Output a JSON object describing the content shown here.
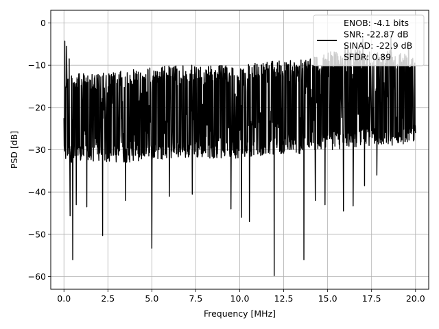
{
  "chart_data": {
    "type": "line",
    "title": "",
    "xlabel": "Frequency [MHz]",
    "ylabel": "PSD [dB]",
    "xlim": [
      -0.75,
      20.75
    ],
    "ylim": [
      -63,
      3
    ],
    "xticks": [
      0.0,
      2.5,
      5.0,
      7.5,
      10.0,
      12.5,
      15.0,
      17.5,
      20.0
    ],
    "xtick_labels": [
      "0.0",
      "2.5",
      "5.0",
      "7.5",
      "10.0",
      "12.5",
      "15.0",
      "17.5",
      "20.0"
    ],
    "yticks": [
      0,
      -10,
      -20,
      -30,
      -40,
      -50,
      -60
    ],
    "ytick_labels": [
      "0",
      "−10",
      "−20",
      "−30",
      "−40",
      "−50",
      "−60"
    ],
    "grid": true,
    "legend_position": "top-right",
    "series": [
      {
        "color": "#000000",
        "noisy_trace": true,
        "envelope": {
          "x": [
            0,
            2,
            4,
            6,
            8,
            10,
            12,
            14,
            15,
            16,
            17,
            18,
            19,
            20
          ],
          "upper": [
            -12,
            -12,
            -11,
            -10,
            -10,
            -10,
            -9,
            -8,
            -7,
            -6,
            -6,
            -6,
            -6,
            -7
          ],
          "lower": [
            -33,
            -33,
            -33,
            -32,
            -32,
            -32,
            -31,
            -31,
            -30,
            -30,
            -29,
            -29,
            -29,
            -28
          ]
        },
        "peaks": [
          {
            "x": 0.05,
            "y": -4.3
          },
          {
            "x": 0.15,
            "y": -5.5
          },
          {
            "x": 0.3,
            "y": -8.5
          },
          {
            "x": 16.0,
            "y": -5.0
          },
          {
            "x": 17.0,
            "y": -3.8
          },
          {
            "x": 18.6,
            "y": -3.5
          },
          {
            "x": 19.6,
            "y": -4.5
          }
        ],
        "dips": [
          {
            "x": 0.35,
            "y": -45.6
          },
          {
            "x": 0.5,
            "y": -56.0
          },
          {
            "x": 0.7,
            "y": -43.0
          },
          {
            "x": 1.3,
            "y": -43.5
          },
          {
            "x": 2.2,
            "y": -50.3
          },
          {
            "x": 3.5,
            "y": -42.0
          },
          {
            "x": 5.0,
            "y": -53.3
          },
          {
            "x": 6.0,
            "y": -41.0
          },
          {
            "x": 7.3,
            "y": -40.5
          },
          {
            "x": 9.5,
            "y": -44.0
          },
          {
            "x": 10.1,
            "y": -46.0
          },
          {
            "x": 10.55,
            "y": -47.0
          },
          {
            "x": 11.96,
            "y": -59.8
          },
          {
            "x": 13.65,
            "y": -56.0
          },
          {
            "x": 14.3,
            "y": -42.0
          },
          {
            "x": 14.85,
            "y": -43.0
          },
          {
            "x": 15.9,
            "y": -44.5
          },
          {
            "x": 16.45,
            "y": -43.3
          },
          {
            "x": 17.1,
            "y": -38.5
          },
          {
            "x": 17.8,
            "y": -36.0
          }
        ]
      }
    ],
    "legend": {
      "entries": [
        "ENOB: -4.1 bits",
        "SNR: -22.87 dB",
        "SINAD: -22.9 dB",
        "SFDR: 0.89"
      ],
      "line_color": "#000000"
    }
  }
}
